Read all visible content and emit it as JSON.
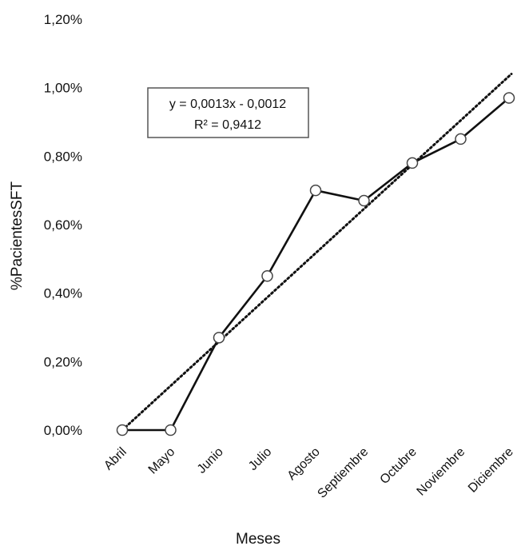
{
  "chart_data": {
    "type": "line",
    "xlabel": "Meses",
    "ylabel": "%PacientesSFT",
    "categories": [
      "Abril",
      "Mayo",
      "Junio",
      "Julio",
      "Agosto",
      "Septiembre",
      "Octubre",
      "Noviembre",
      "Diciembre"
    ],
    "series": [
      {
        "values": [
          0.0,
          0.0,
          0.27,
          0.45,
          0.7,
          0.67,
          0.78,
          0.85,
          0.97
        ]
      }
    ],
    "trendline": {
      "type": "linear",
      "slope": 0.0013,
      "intercept": -0.0012,
      "equation": "y = 0,0013x - 0,0012",
      "r_squared": "R² = 0,9412"
    },
    "y_ticks": [
      "0,00%",
      "0,20%",
      "0,40%",
      "0,60%",
      "0,80%",
      "1,00%",
      "1,20%"
    ],
    "ylim": [
      0,
      1.2
    ],
    "y_unit": "%",
    "grid": false,
    "legend": "none",
    "colors": {
      "line": "#111111",
      "marker_fill": "#ffffff",
      "trend": "#111111"
    }
  }
}
